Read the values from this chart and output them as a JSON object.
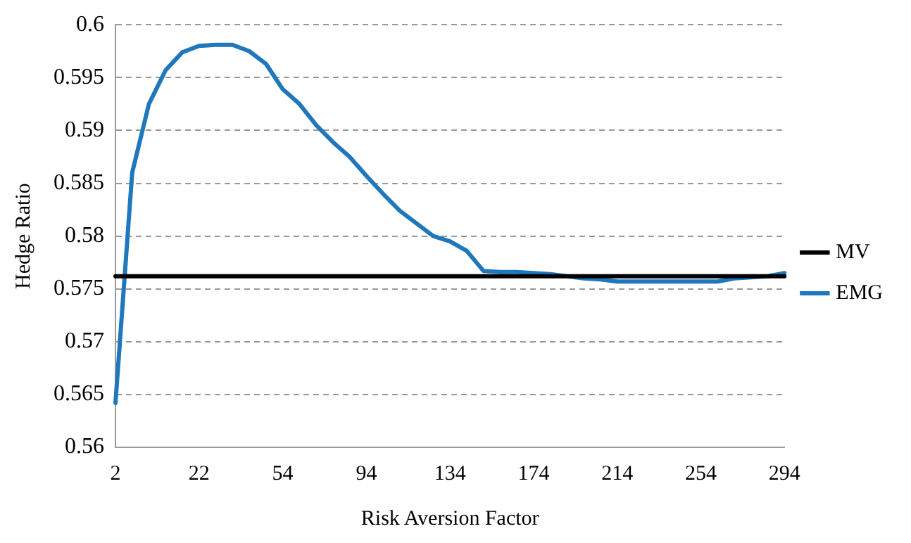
{
  "chart_data": {
    "type": "line",
    "xlabel": "Risk Aversion Factor",
    "ylabel": "Hedge Ratio",
    "categories": [
      "2",
      null,
      null,
      null,
      null,
      "22",
      null,
      null,
      null,
      null,
      "54",
      null,
      null,
      null,
      null,
      "94",
      null,
      null,
      null,
      null,
      "134",
      null,
      null,
      null,
      null,
      "174",
      null,
      null,
      null,
      null,
      "214",
      null,
      null,
      null,
      null,
      "254",
      null,
      null,
      null,
      null,
      "294"
    ],
    "series": [
      {
        "name": "MV",
        "color": "#000000",
        "values": [
          0.5762,
          0.5762,
          0.5762,
          0.5762,
          0.5762,
          0.5762,
          0.5762,
          0.5762,
          0.5762,
          0.5762,
          0.5762,
          0.5762,
          0.5762,
          0.5762,
          0.5762,
          0.5762,
          0.5762,
          0.5762,
          0.5762,
          0.5762,
          0.5762,
          0.5762,
          0.5762,
          0.5762,
          0.5762,
          0.5762,
          0.5762,
          0.5762,
          0.5762,
          0.5762,
          0.5762,
          0.5762,
          0.5762,
          0.5762,
          0.5762,
          0.5762,
          0.5762,
          0.5762,
          0.5762,
          0.5762,
          0.5762
        ]
      },
      {
        "name": "EMG",
        "color": "#1f77bc",
        "values": [
          0.5642,
          0.586,
          0.5925,
          0.5957,
          0.5974,
          0.598,
          0.5981,
          0.5981,
          0.5975,
          0.5963,
          0.5939,
          0.5925,
          0.5905,
          0.5889,
          0.5875,
          0.5857,
          0.584,
          0.5824,
          0.5812,
          0.58,
          0.5795,
          0.5786,
          0.5767,
          0.5766,
          0.5766,
          0.5765,
          0.5764,
          0.5762,
          0.576,
          0.5759,
          0.5757,
          0.5757,
          0.5757,
          0.5757,
          0.5757,
          0.5757,
          0.5757,
          0.576,
          0.5761,
          0.5762,
          0.5765
        ]
      }
    ],
    "ylim": [
      0.56,
      0.6
    ],
    "yticks": [
      0.56,
      0.565,
      0.57,
      0.575,
      0.58,
      0.585,
      0.59,
      0.595,
      0.6
    ],
    "grid": "y",
    "legend": "right",
    "marker": "none",
    "line_style": "solid"
  }
}
